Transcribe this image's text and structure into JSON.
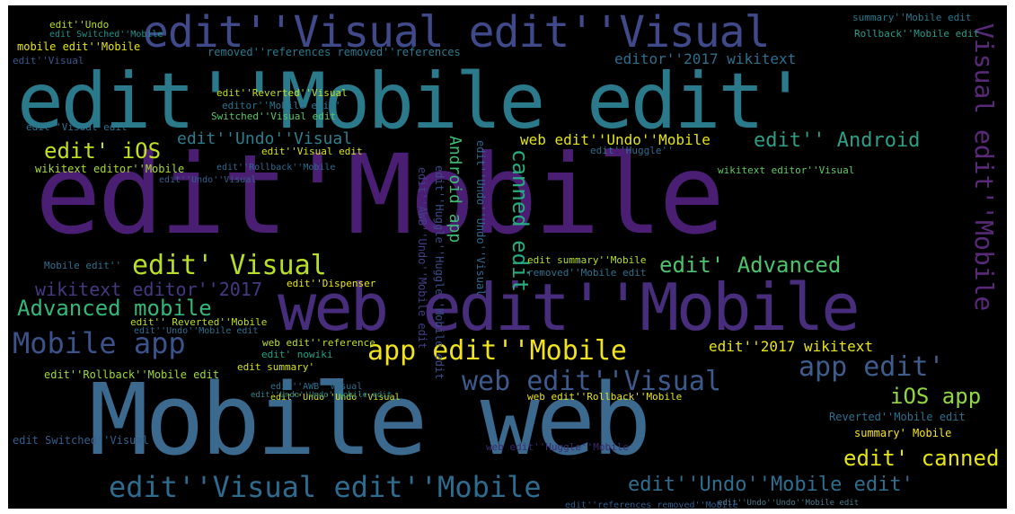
{
  "colors": {
    "background": "#000000",
    "palette": [
      "#440154",
      "#472d7b",
      "#3b528b",
      "#2c728e",
      "#21918c",
      "#28ae80",
      "#5ec962",
      "#addc30",
      "#fde725"
    ]
  },
  "words": [
    {
      "text": "Mobile web",
      "color": "#3b6a8e"
    },
    {
      "text": "edit'Mobile",
      "color": "#4a1f73"
    },
    {
      "text": "edit''Mobile edit'",
      "color": "#2a7a8c"
    },
    {
      "text": "web edit''Mobile",
      "color": "#472d7b"
    },
    {
      "text": "edit''Visual edit''Visual",
      "color": "#404a8a"
    },
    {
      "text": "edit''Visual edit''Mobile",
      "color": "#2e6b8e"
    },
    {
      "text": "edit''Undo''Mobile edit'",
      "color": "#2f6e8e"
    },
    {
      "text": "Mobile app",
      "color": "#3b528b"
    },
    {
      "text": "web edit''Visual",
      "color": "#3c5a8c"
    },
    {
      "text": "app edit''Mobile",
      "color": "#f0e21f"
    },
    {
      "text": "edit' Visual",
      "color": "#b8de29"
    },
    {
      "text": "app edit'",
      "color": "#3e5d8c"
    },
    {
      "text": "Visual edit''Mobile",
      "color": "#5a2a7a"
    },
    {
      "text": "edit' canned",
      "color": "#e4e419"
    },
    {
      "text": "iOS app",
      "color": "#90d743"
    },
    {
      "text": "Advanced mobile",
      "color": "#35b779"
    },
    {
      "text": "edit' Advanced",
      "color": "#4ec36b"
    },
    {
      "text": "wikitext editor''2017",
      "color": "#443983"
    },
    {
      "text": "edit' iOS",
      "color": "#c2df23"
    },
    {
      "text": "edit'' Android",
      "color": "#2f9e87"
    },
    {
      "text": "web edit''Undo''Mobile",
      "color": "#e2e418"
    },
    {
      "text": "edit''Undo''Visual",
      "color": "#2e7e8e"
    },
    {
      "text": "editor''2017 wikitext",
      "color": "#2e6f8e"
    },
    {
      "text": "edit''2017 wikitext",
      "color": "#e8e419"
    },
    {
      "text": "canned edit",
      "color": "#27ad81"
    },
    {
      "text": "Android app",
      "color": "#3ebc73"
    },
    {
      "text": "summary' Mobile",
      "color": "#f5e51f"
    },
    {
      "text": "Reverted''Mobile edit",
      "color": "#2d708e"
    },
    {
      "text": "wikitext editor''Mobile",
      "color": "#a8db34"
    },
    {
      "text": "edit''Rollback''Mobile edit",
      "color": "#9fda3a"
    },
    {
      "text": "removed''references removed''references",
      "color": "#297b8e"
    },
    {
      "text": "mobile edit''Mobile",
      "color": "#e5e419"
    },
    {
      "text": "edit''Undo''Undo''Mobile edit",
      "color": "#4d7a8a"
    },
    {
      "text": "summary''Mobile edit",
      "color": "#2a788e"
    },
    {
      "text": "Rollback''Mobile edit",
      "color": "#2b9c8a"
    },
    {
      "text": "edit Switched''Visual",
      "color": "#355f8d"
    },
    {
      "text": "edit''Visual edit",
      "color": "#2d718e"
    },
    {
      "text": "edit''Reverted''Visual",
      "color": "#c0df25"
    },
    {
      "text": "editor''Mobile edit'",
      "color": "#2b748e"
    },
    {
      "text": "edit''Rollback''Mobile",
      "color": "#2e6b8e"
    },
    {
      "text": "Switched''Visual edit",
      "color": "#58c765"
    },
    {
      "text": "edit''Visual edit",
      "color": "#d8e219"
    },
    {
      "text": "edit'' Reverted''Mobile",
      "color": "#bddf26"
    },
    {
      "text": "edit''Undo''Mobile edit",
      "color": "#2e6e8e"
    },
    {
      "text": "edit summary''Mobile",
      "color": "#b5de2b"
    },
    {
      "text": "removed''Mobile edit",
      "color": "#2c718e"
    },
    {
      "text": "edit''Dispenser",
      "color": "#e9e51a"
    },
    {
      "text": "Mobile edit''",
      "color": "#2d708e"
    },
    {
      "text": "edit''Huggle''Huggle''Mobile edit",
      "color": "#3d4d8a"
    },
    {
      "text": "edit''AWB''Undo''Mobile edit",
      "color": "#424086"
    },
    {
      "text": "edit''Undo''Undo''Visual",
      "color": "#31688e"
    },
    {
      "text": "wikitext editor''Visual",
      "color": "#5ec962"
    },
    {
      "text": "edit''Huggle''",
      "color": "#2f6c8e"
    },
    {
      "text": "web edit''Huggle''Mobile",
      "color": "#3b2a6e"
    },
    {
      "text": "edit''Undo''Visual",
      "color": "#35608d"
    },
    {
      "text": "web edit''reference",
      "color": "#bfe028"
    },
    {
      "text": "edit' nowiki",
      "color": "#20a386"
    },
    {
      "text": "edit summary'",
      "color": "#d5e21a"
    },
    {
      "text": "edit''Undo",
      "color": "#b5de2b"
    },
    {
      "text": "edit Switched''Mobile",
      "color": "#1f948c"
    },
    {
      "text": "edit''Visual",
      "color": "#38598c"
    },
    {
      "text": "web edit''Rollback''Mobile",
      "color": "#e7e419"
    },
    {
      "text": "edit''AWB''Visual",
      "color": "#2c728e"
    },
    {
      "text": "edit''Undo''Undo''Visual",
      "color": "#d2e21b"
    },
    {
      "text": "edit''references removed''Mobile",
      "color": "#2d5d8e"
    },
    {
      "text": "edit''Undo''Undo''Mobile edit",
      "color": "#25848e"
    }
  ]
}
